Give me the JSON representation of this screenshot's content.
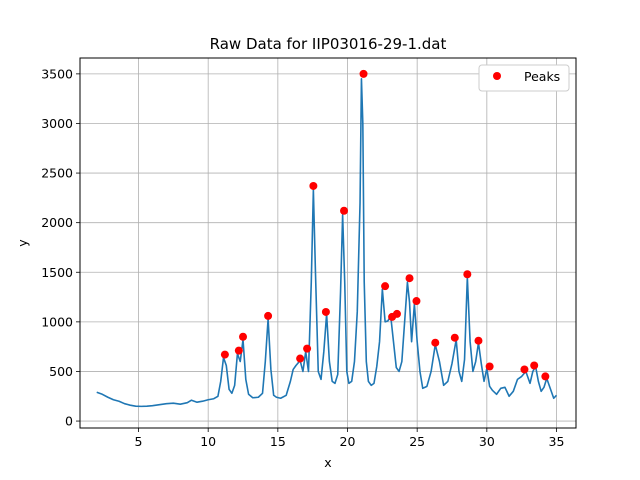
{
  "chart_data": {
    "type": "line",
    "title": "Raw Data for IIP03016-29-1.dat",
    "xlabel": "x",
    "ylabel": "y",
    "xlim": [
      0.8,
      36.4
    ],
    "ylim": [
      -70,
      3660
    ],
    "xticks": [
      5,
      10,
      15,
      20,
      25,
      30,
      35
    ],
    "yticks": [
      0,
      500,
      1000,
      1500,
      2000,
      2500,
      3000,
      3500
    ],
    "grid": true,
    "legend": {
      "position": "top-right",
      "entries": [
        "Peaks"
      ]
    },
    "colors": {
      "line": "#1f77b4",
      "peaks": "#ff0000",
      "grid": "#b0b0b0"
    },
    "series": [
      {
        "kind": "line",
        "x": [
          2.0,
          2.4,
          2.8,
          3.2,
          3.6,
          4.0,
          4.4,
          4.8,
          5.2,
          5.6,
          6.0,
          6.5,
          7.0,
          7.5,
          8.0,
          8.5,
          8.8,
          9.2,
          9.6,
          10.0,
          10.4,
          10.7,
          10.9,
          11.1,
          11.3,
          11.5,
          11.7,
          11.9,
          12.1,
          12.3,
          12.5,
          12.7,
          12.9,
          13.2,
          13.6,
          13.9,
          14.1,
          14.3,
          14.5,
          14.7,
          14.9,
          15.2,
          15.6,
          15.9,
          16.1,
          16.3,
          16.6,
          16.8,
          17.0,
          17.2,
          17.4,
          17.55,
          17.7,
          17.9,
          18.1,
          18.3,
          18.5,
          18.7,
          18.9,
          19.1,
          19.3,
          19.5,
          19.65,
          19.8,
          19.95,
          20.1,
          20.3,
          20.5,
          20.7,
          20.9,
          21.0,
          21.1,
          21.2,
          21.35,
          21.5,
          21.7,
          21.9,
          22.1,
          22.3,
          22.5,
          22.7,
          22.9,
          23.1,
          23.3,
          23.5,
          23.7,
          23.9,
          24.1,
          24.3,
          24.45,
          24.6,
          24.8,
          25.0,
          25.2,
          25.4,
          25.7,
          26.0,
          26.3,
          26.6,
          26.9,
          27.2,
          27.5,
          27.8,
          28.0,
          28.2,
          28.4,
          28.6,
          28.8,
          29.0,
          29.2,
          29.4,
          29.6,
          29.8,
          30.0,
          30.2,
          30.4,
          30.7,
          31.0,
          31.3,
          31.6,
          31.9,
          32.2,
          32.5,
          32.8,
          33.1,
          33.3,
          33.5,
          33.7,
          33.9,
          34.1,
          34.3,
          34.5,
          34.8,
          35.0
        ],
        "y": [
          290,
          270,
          240,
          215,
          200,
          175,
          160,
          150,
          148,
          150,
          155,
          165,
          175,
          180,
          170,
          185,
          210,
          190,
          200,
          215,
          225,
          250,
          400,
          640,
          560,
          320,
          280,
          360,
          680,
          600,
          820,
          420,
          270,
          235,
          240,
          280,
          600,
          1030,
          520,
          260,
          240,
          230,
          260,
          400,
          520,
          560,
          610,
          500,
          700,
          500,
          1400,
          2330,
          1500,
          500,
          420,
          700,
          1080,
          600,
          400,
          380,
          470,
          1300,
          2080,
          1400,
          500,
          380,
          400,
          600,
          1100,
          2200,
          3450,
          3000,
          1400,
          600,
          400,
          360,
          380,
          550,
          800,
          1330,
          1000,
          1010,
          1060,
          800,
          540,
          500,
          600,
          1000,
          1400,
          1200,
          800,
          1180,
          800,
          500,
          330,
          350,
          500,
          770,
          600,
          360,
          400,
          580,
          820,
          500,
          400,
          620,
          1450,
          800,
          500,
          600,
          790,
          580,
          400,
          530,
          350,
          310,
          270,
          330,
          340,
          250,
          300,
          420,
          450,
          500,
          380,
          500,
          550,
          400,
          300,
          340,
          430,
          350,
          230,
          260
        ]
      }
    ],
    "peaks": {
      "name": "Peaks",
      "x": [
        11.2,
        12.2,
        12.5,
        14.3,
        16.6,
        17.1,
        17.55,
        18.45,
        19.75,
        21.15,
        22.7,
        23.2,
        23.55,
        24.45,
        24.95,
        26.3,
        27.7,
        28.6,
        29.4,
        30.2,
        32.7,
        33.4,
        34.2
      ],
      "y": [
        670,
        710,
        850,
        1060,
        630,
        730,
        2370,
        1100,
        2120,
        3500,
        1360,
        1050,
        1080,
        1440,
        1210,
        790,
        840,
        1480,
        810,
        550,
        520,
        560,
        450
      ]
    }
  }
}
